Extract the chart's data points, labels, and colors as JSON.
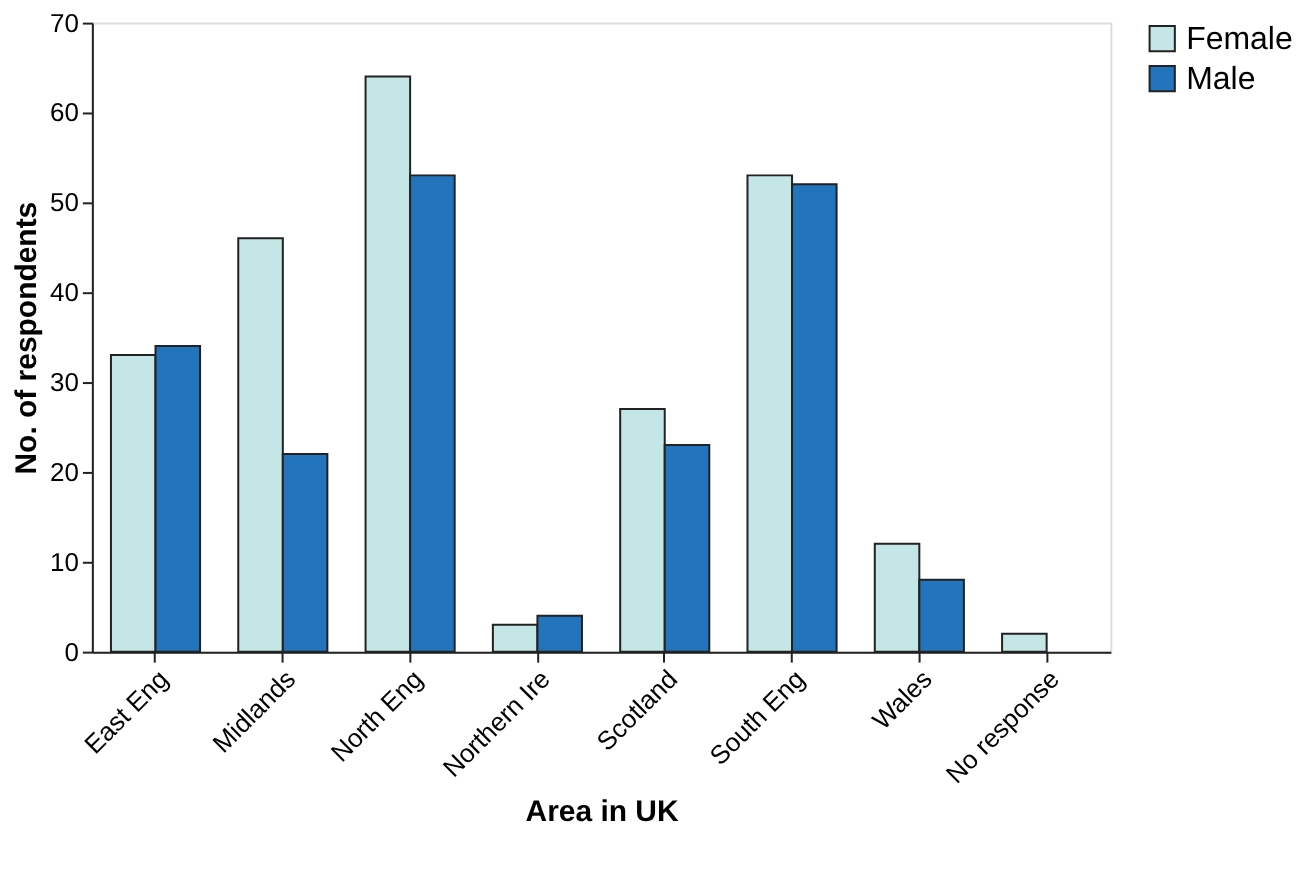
{
  "chart_data": {
    "type": "bar",
    "xlabel": "Area in UK",
    "ylabel": "No. of respondents",
    "categories": [
      "East Eng",
      "Midlands",
      "North Eng",
      "Northern Ire",
      "Scotland",
      "South Eng",
      "Wales",
      "No response"
    ],
    "series": [
      {
        "name": "Female",
        "color": "#c5e6e6",
        "values": [
          33,
          46,
          64,
          3,
          27,
          53,
          12,
          2
        ]
      },
      {
        "name": "Male",
        "color": "#2274bc",
        "values": [
          34,
          22,
          53,
          4,
          23,
          52,
          8,
          null
        ]
      }
    ],
    "ylim": [
      0,
      70
    ],
    "yticks": [
      0,
      10,
      20,
      30,
      40,
      50,
      60,
      70
    ],
    "grid": false,
    "legend": "right"
  }
}
